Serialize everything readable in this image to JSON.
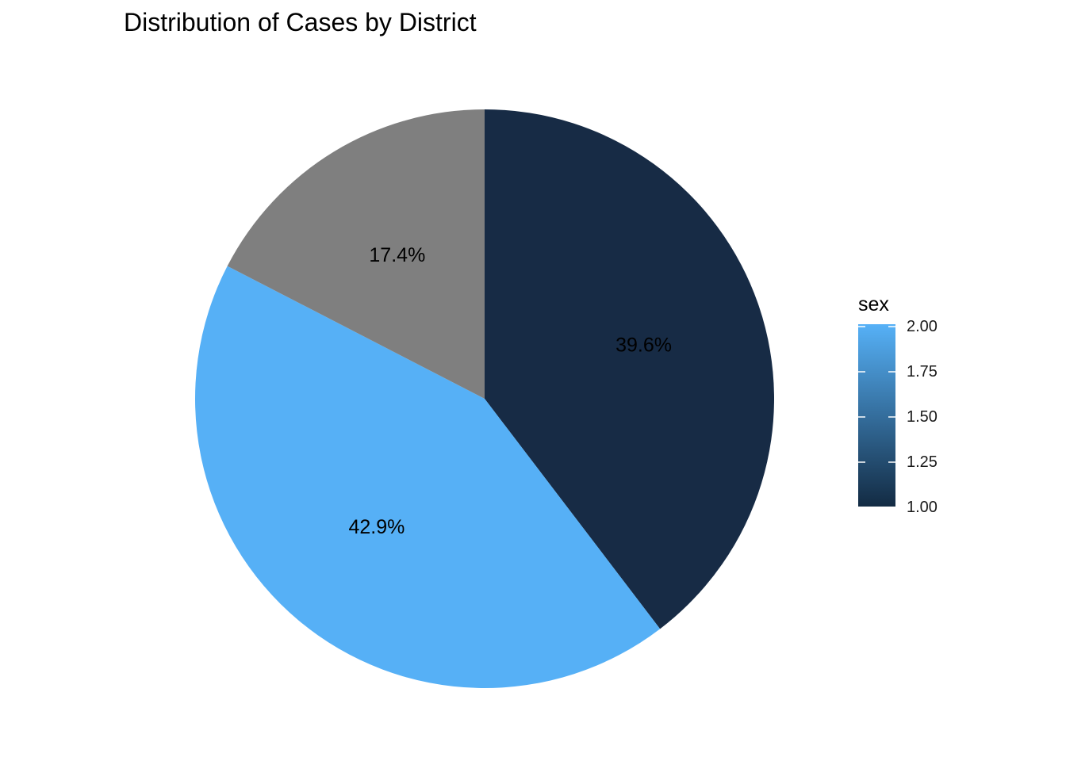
{
  "chart_data": {
    "type": "pie",
    "title": "Distribution of Cases by District",
    "slices": [
      {
        "label": "39.6%",
        "value": 39.6,
        "fill_value": 1.0,
        "color": "#172B45"
      },
      {
        "label": "42.9%",
        "value": 42.9,
        "fill_value": 2.0,
        "color": "#56B0F6"
      },
      {
        "label": "17.4%",
        "value": 17.4,
        "fill_value": null,
        "color": "#7F7F7F"
      }
    ],
    "legend": {
      "title": "sex",
      "placement": "right",
      "scale": "continuous",
      "range": [
        1.0,
        2.0
      ],
      "low_color": "#132B43",
      "high_color": "#56B1F7",
      "ticks": [
        "1.00",
        "1.25",
        "1.50",
        "1.75",
        "2.00"
      ]
    }
  }
}
